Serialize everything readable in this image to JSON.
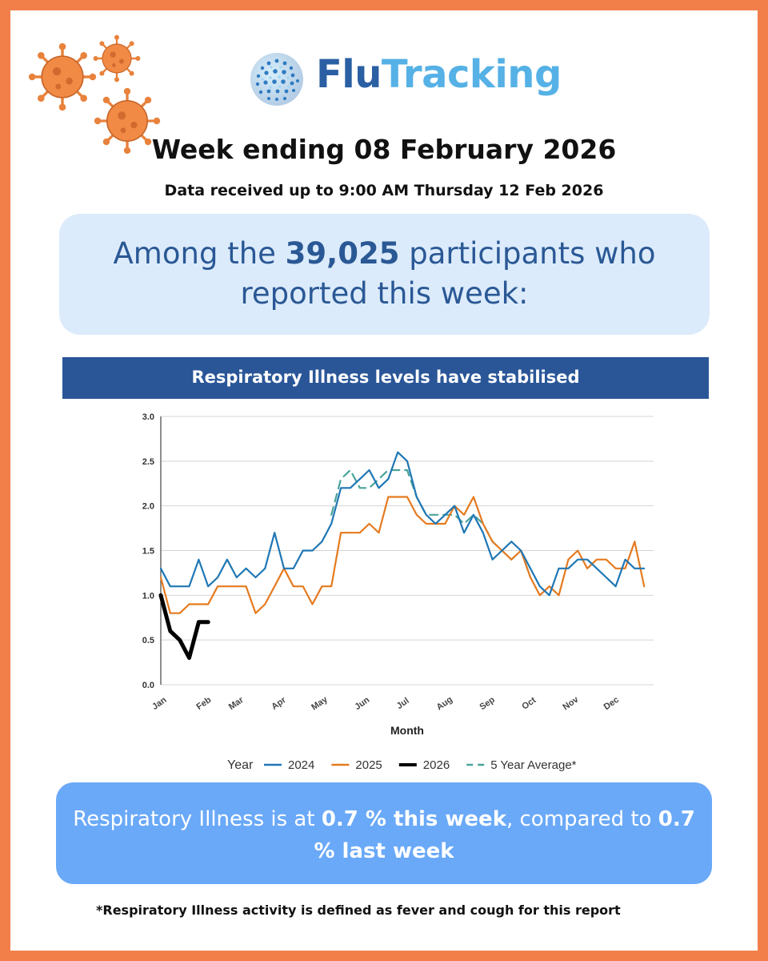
{
  "logo": {
    "part1": "Flu",
    "part2": "Tracking"
  },
  "header": {
    "week_title": "Week ending 08 February 2026",
    "data_received": "Data received up to 9:00 AM Thursday 12 Feb 2026"
  },
  "participants": {
    "prefix": "Among the ",
    "count": "39,025",
    "suffix": " participants who reported this week:"
  },
  "banner": {
    "text": "Respiratory Illness levels have stabilised"
  },
  "status": {
    "prefix": "Respiratory Illness is at ",
    "this_week": "0.7 % this week",
    "middle": ", compared to ",
    "last_week": "0.7 % last week"
  },
  "footnote": "*Respiratory Illness activity is defined as fever and cough for this report",
  "chart_data": {
    "type": "line",
    "title": "",
    "xlabel": "Month",
    "ylabel": "",
    "ylim": [
      0,
      3.0
    ],
    "yticks": [
      0.0,
      0.5,
      1.0,
      1.5,
      2.0,
      2.5,
      3.0
    ],
    "ytick_labels": [
      "0.0",
      "0.5",
      "1.0",
      "1.5",
      "2.0",
      "2.5",
      "3.0"
    ],
    "xlim": [
      1,
      53
    ],
    "xunit": "week",
    "month_ticks": [
      {
        "label": "Jan",
        "week": 1
      },
      {
        "label": "Feb",
        "week": 5.7
      },
      {
        "label": "Mar",
        "week": 9.1
      },
      {
        "label": "Apr",
        "week": 13.6
      },
      {
        "label": "May",
        "week": 17.9
      },
      {
        "label": "Jun",
        "week": 22.4
      },
      {
        "label": "Jul",
        "week": 26.7
      },
      {
        "label": "Aug",
        "week": 31.1
      },
      {
        "label": "Sep",
        "week": 35.6
      },
      {
        "label": "Oct",
        "week": 40.0
      },
      {
        "label": "Nov",
        "week": 44.4
      },
      {
        "label": "Dec",
        "week": 48.7
      }
    ],
    "grid": true,
    "legend_title": "Year",
    "legend_position": "bottom",
    "series": [
      {
        "name": "2024",
        "color": "#1f77b4",
        "style": "solid",
        "width": 2.2,
        "points": [
          [
            1,
            1.3
          ],
          [
            2,
            1.1
          ],
          [
            3,
            1.1
          ],
          [
            4,
            1.1
          ],
          [
            5,
            1.4
          ],
          [
            6,
            1.1
          ],
          [
            7,
            1.2
          ],
          [
            8,
            1.4
          ],
          [
            9,
            1.2
          ],
          [
            10,
            1.3
          ],
          [
            11,
            1.2
          ],
          [
            12,
            1.3
          ],
          [
            13,
            1.7
          ],
          [
            14,
            1.3
          ],
          [
            15,
            1.3
          ],
          [
            16,
            1.5
          ],
          [
            17,
            1.5
          ],
          [
            18,
            1.6
          ],
          [
            19,
            1.8
          ],
          [
            20,
            2.2
          ],
          [
            21,
            2.2
          ],
          [
            22,
            2.3
          ],
          [
            23,
            2.4
          ],
          [
            24,
            2.2
          ],
          [
            25,
            2.3
          ],
          [
            26,
            2.6
          ],
          [
            27,
            2.5
          ],
          [
            28,
            2.1
          ],
          [
            29,
            1.9
          ],
          [
            30,
            1.8
          ],
          [
            31,
            1.9
          ],
          [
            32,
            2.0
          ],
          [
            33,
            1.7
          ],
          [
            34,
            1.9
          ],
          [
            35,
            1.7
          ],
          [
            36,
            1.4
          ],
          [
            37,
            1.5
          ],
          [
            38,
            1.6
          ],
          [
            39,
            1.5
          ],
          [
            40,
            1.3
          ],
          [
            41,
            1.1
          ],
          [
            42,
            1.0
          ],
          [
            43,
            1.3
          ],
          [
            44,
            1.3
          ],
          [
            45,
            1.4
          ],
          [
            46,
            1.4
          ],
          [
            47,
            1.3
          ],
          [
            48,
            1.2
          ],
          [
            49,
            1.1
          ],
          [
            50,
            1.4
          ],
          [
            51,
            1.3
          ],
          [
            52,
            1.3
          ]
        ]
      },
      {
        "name": "2025",
        "color": "#e57a1f",
        "style": "solid",
        "width": 2.2,
        "points": [
          [
            1,
            1.2
          ],
          [
            2,
            0.8
          ],
          [
            3,
            0.8
          ],
          [
            4,
            0.9
          ],
          [
            5,
            0.9
          ],
          [
            6,
            0.9
          ],
          [
            7,
            1.1
          ],
          [
            8,
            1.1
          ],
          [
            9,
            1.1
          ],
          [
            10,
            1.1
          ],
          [
            11,
            0.8
          ],
          [
            12,
            0.9
          ],
          [
            13,
            1.1
          ],
          [
            14,
            1.3
          ],
          [
            15,
            1.1
          ],
          [
            16,
            1.1
          ],
          [
            17,
            0.9
          ],
          [
            18,
            1.1
          ],
          [
            19,
            1.1
          ],
          [
            20,
            1.7
          ],
          [
            21,
            1.7
          ],
          [
            22,
            1.7
          ],
          [
            23,
            1.8
          ],
          [
            24,
            1.7
          ],
          [
            25,
            2.1
          ],
          [
            26,
            2.1
          ],
          [
            27,
            2.1
          ],
          [
            28,
            1.9
          ],
          [
            29,
            1.8
          ],
          [
            30,
            1.8
          ],
          [
            31,
            1.8
          ],
          [
            32,
            2.0
          ],
          [
            33,
            1.9
          ],
          [
            34,
            2.1
          ],
          [
            35,
            1.8
          ],
          [
            36,
            1.6
          ],
          [
            37,
            1.5
          ],
          [
            38,
            1.4
          ],
          [
            39,
            1.5
          ],
          [
            40,
            1.2
          ],
          [
            41,
            1.0
          ],
          [
            42,
            1.1
          ],
          [
            43,
            1.0
          ],
          [
            44,
            1.4
          ],
          [
            45,
            1.5
          ],
          [
            46,
            1.3
          ],
          [
            47,
            1.4
          ],
          [
            48,
            1.4
          ],
          [
            49,
            1.3
          ],
          [
            50,
            1.3
          ],
          [
            51,
            1.6
          ],
          [
            52,
            1.1
          ]
        ]
      },
      {
        "name": "2026",
        "color": "#000000",
        "style": "solid",
        "width": 5,
        "points": [
          [
            1,
            1.0
          ],
          [
            2,
            0.6
          ],
          [
            3,
            0.5
          ],
          [
            4,
            0.3
          ],
          [
            5,
            0.7
          ],
          [
            6,
            0.7
          ]
        ]
      },
      {
        "name": "5 Year Average*",
        "color": "#4aa39b",
        "style": "dashed",
        "width": 2.2,
        "points": [
          [
            19,
            1.9
          ],
          [
            20,
            2.3
          ],
          [
            21,
            2.4
          ],
          [
            22,
            2.2
          ],
          [
            23,
            2.2
          ],
          [
            24,
            2.3
          ],
          [
            25,
            2.4
          ],
          [
            26,
            2.4
          ],
          [
            27,
            2.4
          ],
          [
            28,
            2.1
          ],
          [
            29,
            1.9
          ],
          [
            30,
            1.9
          ],
          [
            31,
            1.9
          ],
          [
            32,
            1.9
          ],
          [
            33,
            1.8
          ],
          [
            34,
            1.9
          ],
          [
            35,
            1.8
          ],
          [
            36,
            1.6
          ],
          [
            37,
            1.5
          ],
          [
            38,
            1.4
          ],
          [
            39,
            1.5
          ],
          [
            40,
            1.2
          ]
        ]
      }
    ]
  }
}
